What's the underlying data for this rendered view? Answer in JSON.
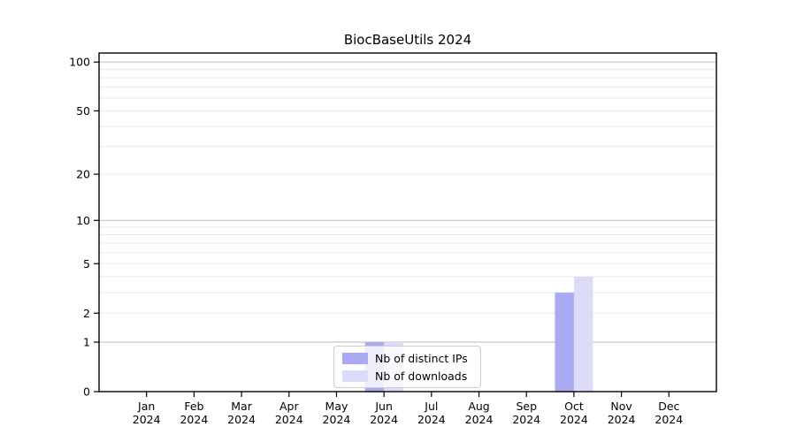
{
  "chart_data": {
    "type": "bar",
    "title": "BiocBaseUtils 2024",
    "x_year": "2024",
    "categories": [
      "Jan",
      "Feb",
      "Mar",
      "Apr",
      "May",
      "Jun",
      "Jul",
      "Aug",
      "Sep",
      "Oct",
      "Nov",
      "Dec"
    ],
    "series": [
      {
        "name": "Nb of distinct IPs",
        "color": "#a9a9f4",
        "values": [
          0,
          0,
          0,
          0,
          0,
          1,
          0,
          0,
          0,
          3,
          0,
          0
        ]
      },
      {
        "name": "Nb of downloads",
        "color": "#dcdcf8",
        "values": [
          0,
          0,
          0,
          0,
          0,
          1,
          0,
          0,
          0,
          4,
          0,
          0
        ]
      }
    ],
    "yscale": "log1p",
    "yticks": [
      0,
      1,
      2,
      5,
      10,
      20,
      50,
      100
    ],
    "ylim": [
      0,
      115
    ],
    "grid": {
      "major": [
        1,
        10,
        100
      ],
      "minor": [
        2,
        3,
        4,
        5,
        6,
        7,
        8,
        9,
        20,
        30,
        40,
        50,
        60,
        70,
        80,
        90
      ],
      "major_color": "#c6c6c6",
      "minor_color": "#e9e9e9"
    },
    "axis_color": "#000000",
    "legend_position": "lower center"
  }
}
